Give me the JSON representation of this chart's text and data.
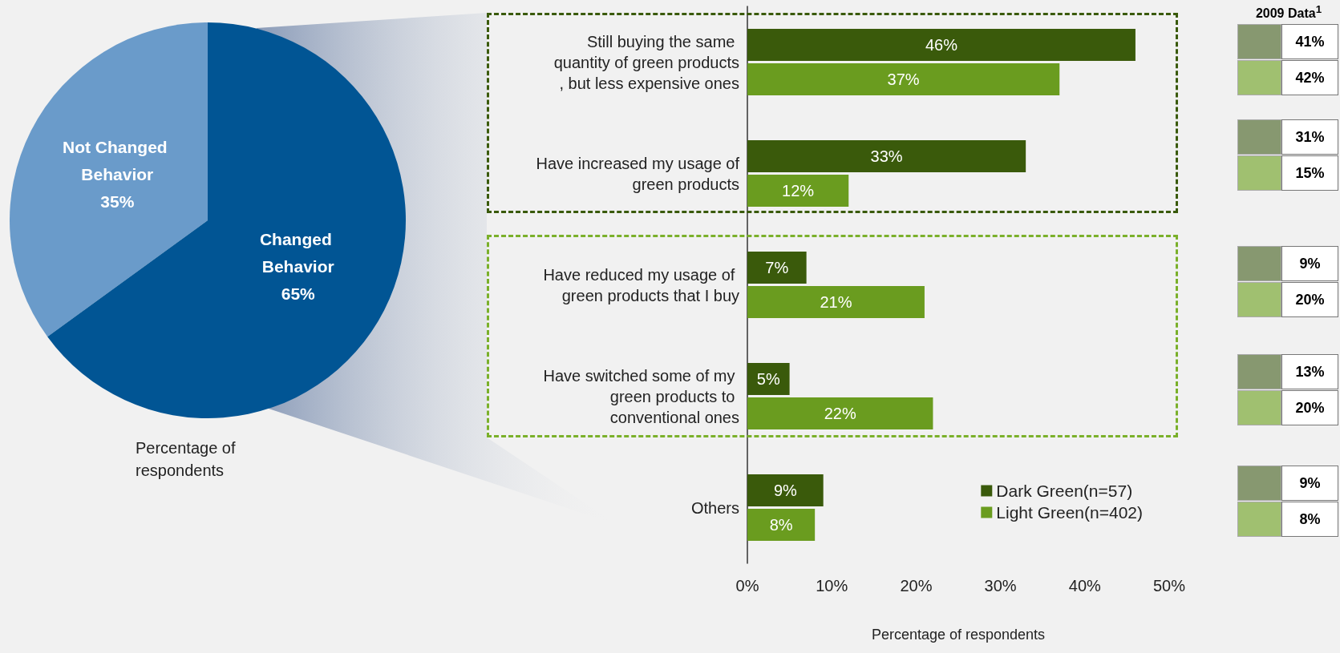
{
  "chart_data": [
    {
      "type": "pie",
      "categories": [
        "Not Changed Behavior",
        "Changed Behavior"
      ],
      "values": [
        35,
        65
      ],
      "colors": [
        "#6a9bca",
        "#015594"
      ],
      "value_labels": [
        "35%",
        "65%"
      ],
      "annotations": [
        "Percentage of respondents"
      ]
    },
    {
      "type": "bar",
      "orientation": "horizontal",
      "categories": [
        "Still buying the same quantity of green products, but less expensive ones",
        "Have increased my usage of green products",
        "Have reduced my usage of green products that I buy",
        "Have switched some of my green products to conventional ones",
        "Others"
      ],
      "series": [
        {
          "name": "Dark Green(n=57)",
          "color": "#3a5a0b",
          "values": [
            46,
            33,
            7,
            5,
            9
          ],
          "value_labels": [
            "46%",
            "33%",
            "7%",
            "5%",
            "9%"
          ]
        },
        {
          "name": "Light Green(n=402)",
          "color": "#6a9c1f",
          "values": [
            37,
            12,
            21,
            22,
            8
          ],
          "value_labels": [
            "37%",
            "12%",
            "21%",
            "22%",
            "8%"
          ]
        }
      ],
      "xlim": [
        0,
        50
      ],
      "xticks": [
        {
          "value": 0,
          "label": "0%"
        },
        {
          "value": 10,
          "label": "10%"
        },
        {
          "value": 20,
          "label": "20%"
        },
        {
          "value": 30,
          "label": "30%"
        },
        {
          "value": 40,
          "label": "40%"
        },
        {
          "value": 50,
          "label": "50%"
        }
      ],
      "xlabel": "Percentage of respondents",
      "legend": "bottom right",
      "grid": false
    },
    {
      "type": "other",
      "title": "2009 Data$^{1}$",
      "colors": [
        "#879870",
        "#a0c070"
      ],
      "annotations": [
        "41%",
        "42%",
        "31%",
        "15%",
        "9%",
        "20%",
        "13%",
        "20%",
        "9%",
        "8%"
      ]
    }
  ]
}
